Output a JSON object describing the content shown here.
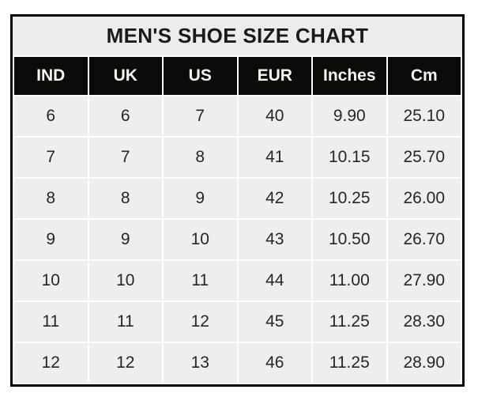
{
  "chart_data": {
    "type": "table",
    "title": "MEN'S SHOE SIZE CHART",
    "columns": [
      "IND",
      "UK",
      "US",
      "EUR",
      "Inches",
      "Cm"
    ],
    "rows": [
      [
        "6",
        "6",
        "7",
        "40",
        "9.90",
        "25.10"
      ],
      [
        "7",
        "7",
        "8",
        "41",
        "10.15",
        "25.70"
      ],
      [
        "8",
        "8",
        "9",
        "42",
        "10.25",
        "26.00"
      ],
      [
        "9",
        "9",
        "10",
        "43",
        "10.50",
        "26.70"
      ],
      [
        "10",
        "10",
        "11",
        "44",
        "11.00",
        "27.90"
      ],
      [
        "11",
        "11",
        "12",
        "45",
        "11.25",
        "28.30"
      ],
      [
        "12",
        "12",
        "13",
        "46",
        "11.25",
        "28.90"
      ]
    ],
    "layout": {
      "legend": "none",
      "grid": "white-gridlines-on-gray-cells"
    }
  },
  "colors": {
    "page_bg": "#ffffff",
    "outer_border": "#000000",
    "title_bg": "#ececea",
    "title_text": "#1a1a1a",
    "header_bg": "#0d0b09",
    "header_text": "#f7f5f0",
    "cell_bg": "#efeeec",
    "cell_text": "#262626",
    "grid_line": "#ffffff"
  }
}
